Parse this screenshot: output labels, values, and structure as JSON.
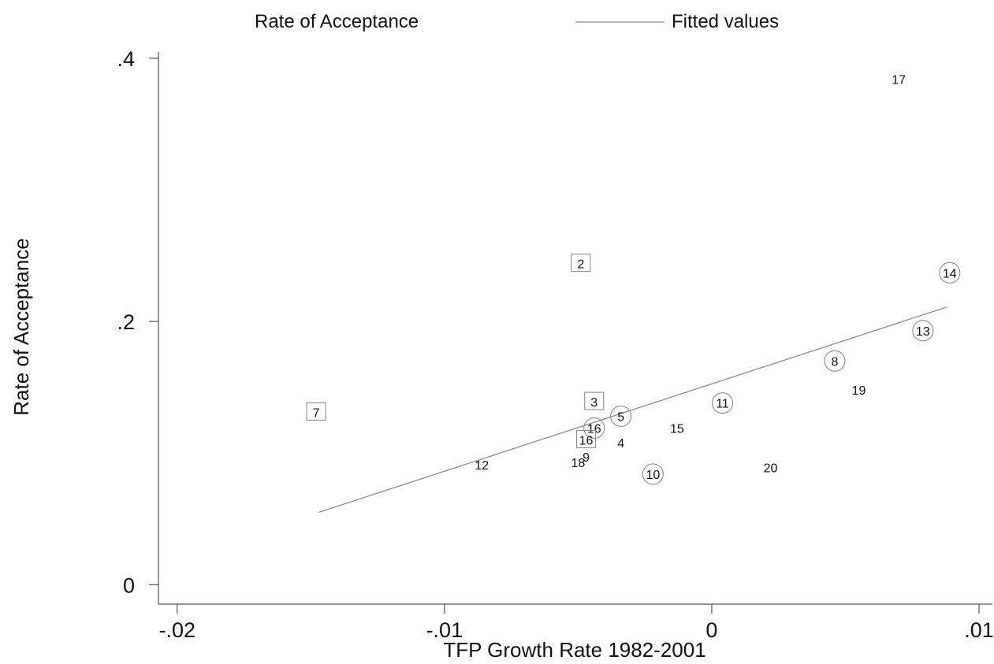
{
  "chart_data": {
    "type": "scatter",
    "xlabel": "TFP Growth Rate 1982-2001",
    "ylabel": "Rate of Acceptance",
    "xlim": [
      -0.0207,
      0.0105
    ],
    "ylim": [
      -0.0148,
      0.4048
    ],
    "x_ticks": [
      {
        "value": -0.02,
        "label": "-.02"
      },
      {
        "value": -0.01,
        "label": "-.01"
      },
      {
        "value": 0,
        "label": "0"
      },
      {
        "value": 0.01,
        "label": ".01"
      }
    ],
    "y_ticks": [
      {
        "value": 0,
        "label": "0"
      },
      {
        "value": 0.2,
        "label": ".2"
      },
      {
        "value": 0.4,
        "label": ".4"
      }
    ],
    "legend": {
      "position": "top",
      "entries": [
        {
          "label": "Rate of Acceptance",
          "symbol": "none"
        },
        {
          "label": "Fitted values",
          "symbol": "line"
        }
      ]
    },
    "series": [
      {
        "name": "Rate of Acceptance",
        "points": [
          {
            "label": "17",
            "x": 0.007,
            "y": 0.384,
            "marker": "none"
          },
          {
            "label": "2",
            "x": -0.0049,
            "y": 0.244,
            "marker": "square"
          },
          {
            "label": "14",
            "x": 0.0089,
            "y": 0.237,
            "marker": "circle"
          },
          {
            "label": "13",
            "x": 0.0079,
            "y": 0.193,
            "marker": "circle"
          },
          {
            "label": "8",
            "x": 0.0046,
            "y": 0.17,
            "marker": "circle"
          },
          {
            "label": "19",
            "x": 0.0055,
            "y": 0.148,
            "marker": "none"
          },
          {
            "label": "3",
            "x": -0.0044,
            "y": 0.139,
            "marker": "square"
          },
          {
            "label": "11",
            "x": 0.0004,
            "y": 0.138,
            "marker": "circle"
          },
          {
            "label": "7",
            "x": -0.0148,
            "y": 0.131,
            "marker": "square"
          },
          {
            "label": "5",
            "x": -0.0034,
            "y": 0.128,
            "marker": "circle"
          },
          {
            "label": "16",
            "x": -0.0044,
            "y": 0.119,
            "marker": "circle"
          },
          {
            "label": "15",
            "x": -0.0013,
            "y": 0.119,
            "marker": "none"
          },
          {
            "label": "16",
            "x": -0.0047,
            "y": 0.11,
            "marker": "square"
          },
          {
            "label": "4",
            "x": -0.0034,
            "y": 0.108,
            "marker": "none"
          },
          {
            "label": "9",
            "x": -0.0047,
            "y": 0.097,
            "marker": "none"
          },
          {
            "label": "18",
            "x": -0.005,
            "y": 0.093,
            "marker": "none"
          },
          {
            "label": "12",
            "x": -0.0086,
            "y": 0.091,
            "marker": "none"
          },
          {
            "label": "20",
            "x": 0.0022,
            "y": 0.089,
            "marker": "none"
          },
          {
            "label": "10",
            "x": -0.0022,
            "y": 0.084,
            "marker": "circle"
          }
        ]
      },
      {
        "name": "Fitted values",
        "type": "line",
        "x": [
          -0.0147,
          0.0088
        ],
        "y": [
          0.055,
          0.211
        ]
      }
    ]
  }
}
